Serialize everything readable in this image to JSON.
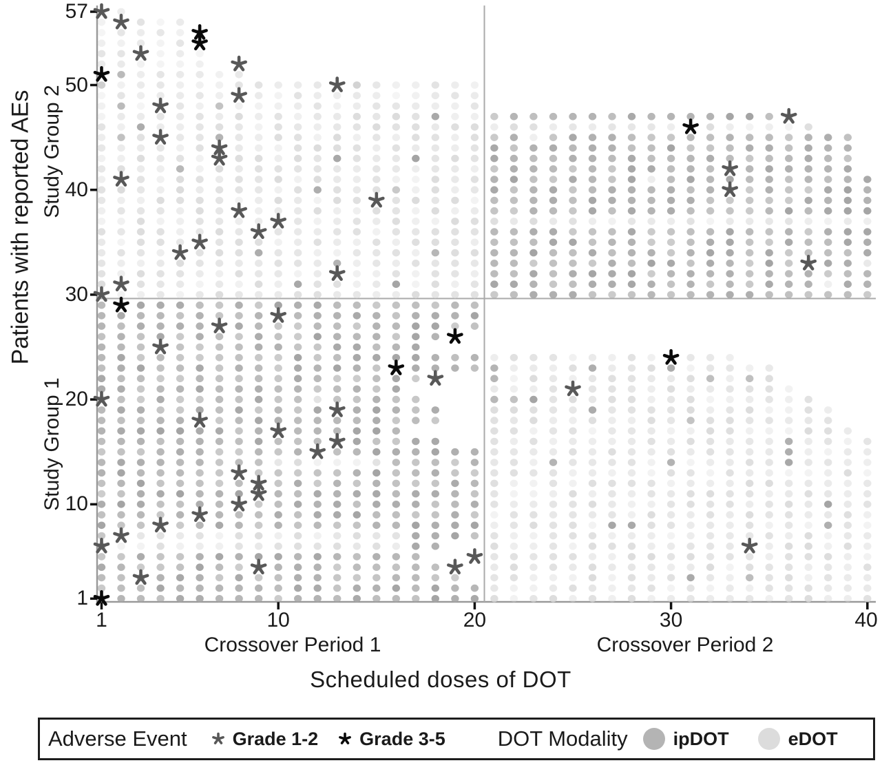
{
  "figure": {
    "ylabel": "Patients with reported AEs",
    "study_group_2": "Study Group 2",
    "study_group_1": "Study Group 1",
    "xlabel": "Scheduled doses of DOT",
    "crossover_period_1": "Crossover Period 1",
    "crossover_period_2": "Crossover Period 2"
  },
  "legend": {
    "adverse_event_title": "Adverse Event",
    "grade12_label": "Grade 1-2",
    "grade35_label": "Grade 3-5",
    "modality_title": "DOT Modality",
    "ipdot_label": "ipDOT",
    "edot_label": "eDOT"
  },
  "colors": {
    "ipdot": "#a4a4a4",
    "edot": "#d7d7d7",
    "ipdot_legend": "#b4b4b4",
    "edot_legend": "#dcdcdc",
    "grade12": "#585858",
    "grade35": "#0a0a0a",
    "axis": "#999999",
    "divider": "#aaaaaa",
    "tick": "#111111"
  },
  "chart_data": {
    "type": "scatter",
    "subtype": "dot-matrix",
    "title": "Adverse events by scheduled DOT dose, patient, study group and crossover period",
    "xlabel": "Scheduled doses of DOT",
    "ylabel": "Patients with reported AEs",
    "x_ticks": [
      1,
      10,
      20,
      30,
      40
    ],
    "y_ticks": [
      57,
      50,
      40,
      30,
      20,
      10,
      1
    ],
    "x_range": [
      1,
      40
    ],
    "y_range": [
      1,
      57
    ],
    "period_split_after_dose": 20,
    "group_split_after_patient": 29,
    "panels": {
      "group2_period1": {
        "modality": "eDOT",
        "rows": [
          [
            57,
            1,
            2
          ],
          [
            56,
            1,
            5
          ],
          [
            55,
            1,
            6
          ],
          [
            54,
            1,
            6
          ],
          [
            53,
            1,
            6
          ],
          [
            52,
            1,
            6
          ],
          [
            51,
            1,
            8
          ],
          [
            50,
            1,
            20
          ],
          [
            49,
            1,
            20
          ],
          [
            48,
            1,
            20
          ],
          [
            47,
            1,
            20
          ],
          [
            46,
            1,
            20
          ],
          [
            45,
            1,
            20
          ],
          [
            44,
            1,
            20
          ],
          [
            43,
            1,
            20
          ],
          [
            42,
            1,
            20
          ],
          [
            41,
            1,
            20
          ],
          [
            40,
            1,
            20
          ],
          [
            39,
            1,
            20
          ],
          [
            38,
            1,
            20
          ],
          [
            37,
            1,
            20
          ],
          [
            36,
            1,
            20
          ],
          [
            35,
            1,
            20
          ],
          [
            34,
            1,
            20
          ],
          [
            33,
            1,
            20
          ],
          [
            32,
            1,
            20
          ],
          [
            31,
            1,
            20
          ],
          [
            30,
            1,
            20
          ]
        ],
        "ipdot_dots": [
          [
            2,
            51
          ],
          [
            1,
            50
          ],
          [
            14,
            50
          ],
          [
            2,
            48
          ],
          [
            7,
            48
          ],
          [
            18,
            47
          ],
          [
            3,
            46
          ],
          [
            2,
            45
          ],
          [
            7,
            45
          ],
          [
            13,
            43
          ],
          [
            17,
            43
          ],
          [
            5,
            42
          ],
          [
            12,
            40
          ],
          [
            16,
            40
          ],
          [
            18,
            34
          ],
          [
            9,
            34
          ],
          [
            13,
            33
          ],
          [
            11,
            31
          ],
          [
            16,
            31
          ]
        ]
      },
      "group2_period2": {
        "modality": "ipDOT",
        "rows": [
          [
            47,
            21,
            36
          ],
          [
            46,
            21,
            37
          ],
          [
            45,
            21,
            39
          ],
          [
            44,
            21,
            39
          ],
          [
            43,
            21,
            39
          ],
          [
            42,
            21,
            39
          ],
          [
            41,
            21,
            40
          ],
          [
            40,
            21,
            40
          ],
          [
            39,
            21,
            40
          ],
          [
            38,
            21,
            40
          ],
          [
            37,
            21,
            40
          ],
          [
            36,
            21,
            40
          ],
          [
            35,
            21,
            40
          ],
          [
            34,
            21,
            40
          ],
          [
            33,
            21,
            40
          ],
          [
            32,
            21,
            40
          ],
          [
            31,
            21,
            40
          ],
          [
            30,
            21,
            40
          ]
        ],
        "edot_rows": [
          46,
          37
        ],
        "edot_dots": [
          [
            23,
            45
          ],
          [
            29,
            41
          ],
          [
            40,
            33
          ],
          [
            38,
            31
          ]
        ]
      },
      "group1_period1": {
        "modality": "ipDOT",
        "rows": [
          [
            29,
            1,
            20
          ],
          [
            28,
            1,
            20
          ],
          [
            27,
            1,
            20
          ],
          [
            26,
            1,
            18
          ],
          [
            25,
            1,
            17
          ],
          [
            24,
            1,
            20
          ],
          [
            23,
            1,
            20
          ],
          [
            22,
            1,
            18
          ],
          [
            21,
            1,
            16
          ],
          [
            20,
            1,
            17
          ],
          [
            19,
            1,
            18
          ],
          [
            18,
            1,
            18
          ],
          [
            17,
            1,
            16
          ],
          [
            16,
            1,
            18
          ],
          [
            15,
            1,
            20
          ],
          [
            14,
            1,
            20
          ],
          [
            13,
            1,
            20
          ],
          [
            12,
            1,
            20
          ],
          [
            11,
            1,
            20
          ],
          [
            10,
            1,
            20
          ],
          [
            9,
            1,
            20
          ],
          [
            8,
            1,
            20
          ],
          [
            7,
            1,
            20
          ],
          [
            6,
            1,
            18
          ],
          [
            5,
            1,
            17
          ],
          [
            4,
            1,
            18
          ],
          [
            3,
            1,
            19
          ],
          [
            2,
            1,
            20
          ],
          [
            1,
            1,
            20
          ]
        ],
        "edot_ranges": [
          [
            14,
            10,
            15
          ],
          [
            7,
            2,
            16
          ],
          [
            6,
            2,
            16
          ]
        ],
        "edot_dots": [
          [
            12,
            20
          ]
        ]
      },
      "group1_period2": {
        "modality": "eDOT",
        "rows": [
          [
            24,
            21,
            33
          ],
          [
            23,
            21,
            35
          ],
          [
            22,
            21,
            35
          ],
          [
            21,
            21,
            36
          ],
          [
            20,
            21,
            37
          ],
          [
            19,
            21,
            38
          ],
          [
            18,
            21,
            38
          ],
          [
            17,
            21,
            39
          ],
          [
            16,
            21,
            40
          ],
          [
            15,
            21,
            40
          ],
          [
            14,
            21,
            40
          ],
          [
            13,
            21,
            40
          ],
          [
            12,
            21,
            40
          ],
          [
            11,
            21,
            40
          ],
          [
            10,
            21,
            40
          ],
          [
            9,
            21,
            40
          ],
          [
            8,
            21,
            40
          ],
          [
            7,
            21,
            40
          ],
          [
            6,
            21,
            40
          ],
          [
            5,
            21,
            40
          ],
          [
            4,
            21,
            40
          ],
          [
            3,
            21,
            40
          ],
          [
            2,
            21,
            40
          ],
          [
            1,
            21,
            40
          ]
        ],
        "ipdot_dots": [
          [
            21,
            23
          ],
          [
            26,
            23
          ],
          [
            30,
            23
          ],
          [
            21,
            22
          ],
          [
            32,
            22
          ],
          [
            34,
            22
          ],
          [
            21,
            20
          ],
          [
            22,
            20
          ],
          [
            23,
            20
          ],
          [
            26,
            19
          ],
          [
            31,
            18
          ],
          [
            40,
            17
          ],
          [
            36,
            16
          ],
          [
            36,
            15
          ],
          [
            36,
            14
          ],
          [
            30,
            14
          ],
          [
            24,
            14
          ],
          [
            38,
            10
          ],
          [
            38,
            8
          ],
          [
            27,
            8
          ],
          [
            28,
            8
          ],
          [
            34,
            3
          ],
          [
            31,
            3
          ]
        ]
      }
    },
    "adverse_events": {
      "grade_1_2": [
        [
          1,
          57
        ],
        [
          2,
          56
        ],
        [
          3,
          53
        ],
        [
          8,
          52
        ],
        [
          13,
          50
        ],
        [
          8,
          49
        ],
        [
          4,
          48
        ],
        [
          4,
          45
        ],
        [
          7,
          44
        ],
        [
          7,
          43
        ],
        [
          2,
          41
        ],
        [
          15,
          39
        ],
        [
          8,
          38
        ],
        [
          10,
          37
        ],
        [
          9,
          36
        ],
        [
          6,
          35
        ],
        [
          5,
          34
        ],
        [
          13,
          32
        ],
        [
          2,
          31
        ],
        [
          1,
          30
        ],
        [
          36,
          47
        ],
        [
          33,
          42
        ],
        [
          33,
          40
        ],
        [
          37,
          33
        ],
        [
          10,
          28
        ],
        [
          7,
          27
        ],
        [
          4,
          25
        ],
        [
          18,
          22
        ],
        [
          1,
          20
        ],
        [
          13,
          19
        ],
        [
          6,
          18
        ],
        [
          10,
          17
        ],
        [
          13,
          16
        ],
        [
          12,
          15
        ],
        [
          8,
          13
        ],
        [
          9,
          12
        ],
        [
          9,
          11
        ],
        [
          8,
          10
        ],
        [
          6,
          9
        ],
        [
          4,
          8
        ],
        [
          2,
          7
        ],
        [
          1,
          6
        ],
        [
          20,
          5
        ],
        [
          19,
          4
        ],
        [
          9,
          4
        ],
        [
          3,
          3
        ],
        [
          25,
          21
        ],
        [
          34,
          6
        ]
      ],
      "grade_3_5": [
        [
          6,
          55
        ],
        [
          6,
          54
        ],
        [
          1,
          51
        ],
        [
          31,
          46
        ],
        [
          2,
          29
        ],
        [
          19,
          26
        ],
        [
          16,
          23
        ],
        [
          30,
          24
        ],
        [
          1,
          1
        ]
      ]
    },
    "legend_position": "bottom",
    "grid": false
  }
}
